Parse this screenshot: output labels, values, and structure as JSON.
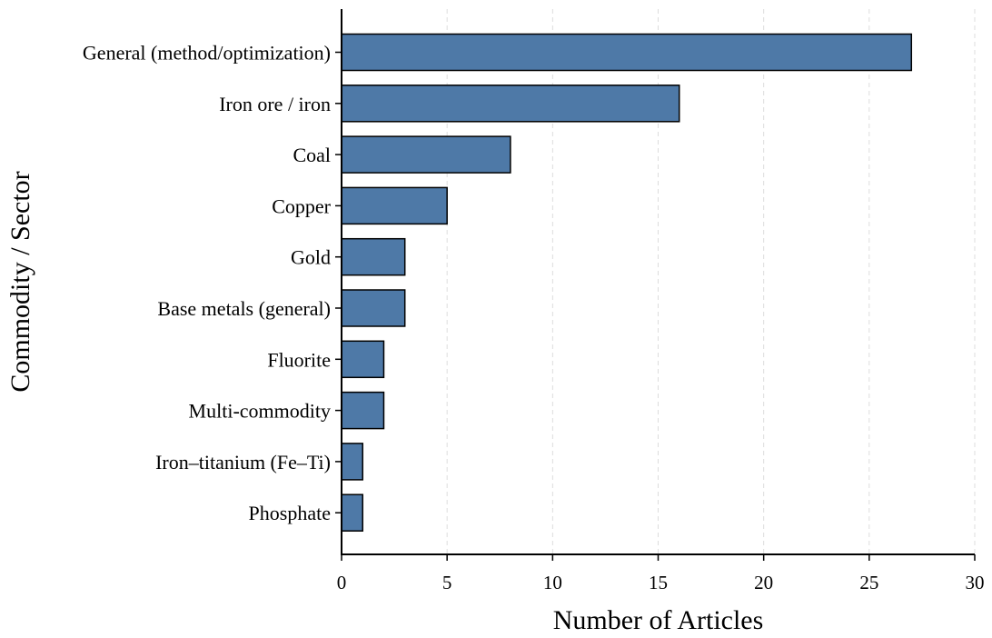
{
  "chart_data": {
    "type": "bar",
    "orientation": "horizontal",
    "categories": [
      "General (method/optimization)",
      "Iron ore / iron",
      "Coal",
      "Copper",
      "Gold",
      "Base metals (general)",
      "Fluorite",
      "Multi-commodity",
      "Iron–titanium (Fe–Ti)",
      "Phosphate"
    ],
    "values": [
      27,
      16,
      8,
      5,
      3,
      3,
      2,
      2,
      1,
      1
    ],
    "xlabel": "Number of Articles",
    "ylabel": "Commodity / Sector",
    "xlim": [
      0,
      30
    ],
    "xticks": [
      0,
      5,
      10,
      15,
      20,
      25,
      30
    ],
    "xtick_labels": [
      "0",
      "5",
      "10",
      "15",
      "20",
      "25",
      "30"
    ],
    "grid": "vertical dashed",
    "bar_color": "#4e79a7",
    "edge_color": "#000000"
  }
}
